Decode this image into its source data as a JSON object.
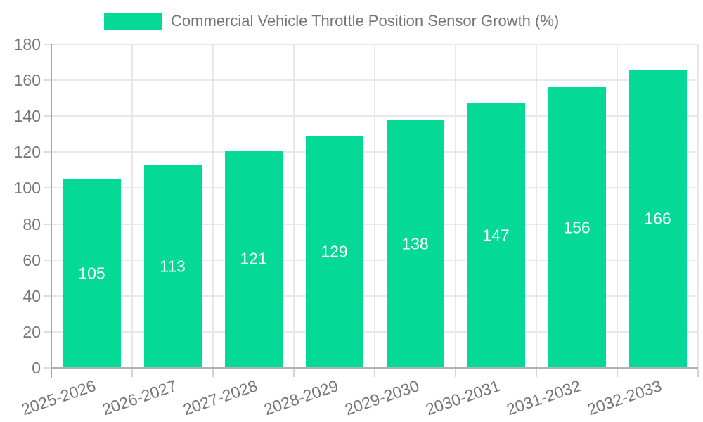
{
  "chart_data": {
    "type": "bar",
    "title": "Commercial Vehicle Throttle Position Sensor Growth (%)",
    "categories": [
      "2025-2026",
      "2026-2027",
      "2027-2028",
      "2028-2029",
      "2029-2030",
      "2030-2031",
      "2031-2032",
      "2032-2033"
    ],
    "values": [
      105,
      113,
      121,
      129,
      138,
      147,
      156,
      166
    ],
    "xlabel": "",
    "ylabel": "",
    "ylim": [
      0,
      180
    ],
    "yticks": [
      0,
      20,
      40,
      60,
      80,
      100,
      120,
      140,
      160,
      180
    ],
    "grid": true,
    "value_labels_shown": true,
    "x_label_rotation_deg": -19,
    "legend": {
      "position": "top",
      "label": "Commercial Vehicle Throttle Position Sensor Growth (%)"
    },
    "colors": {
      "bar": "#04d996",
      "value_label": "#ffffff",
      "axis_text": "#757575",
      "grid_line": "#e8e8e8",
      "axis_line": "#ababab",
      "background": "#ffffff"
    }
  }
}
